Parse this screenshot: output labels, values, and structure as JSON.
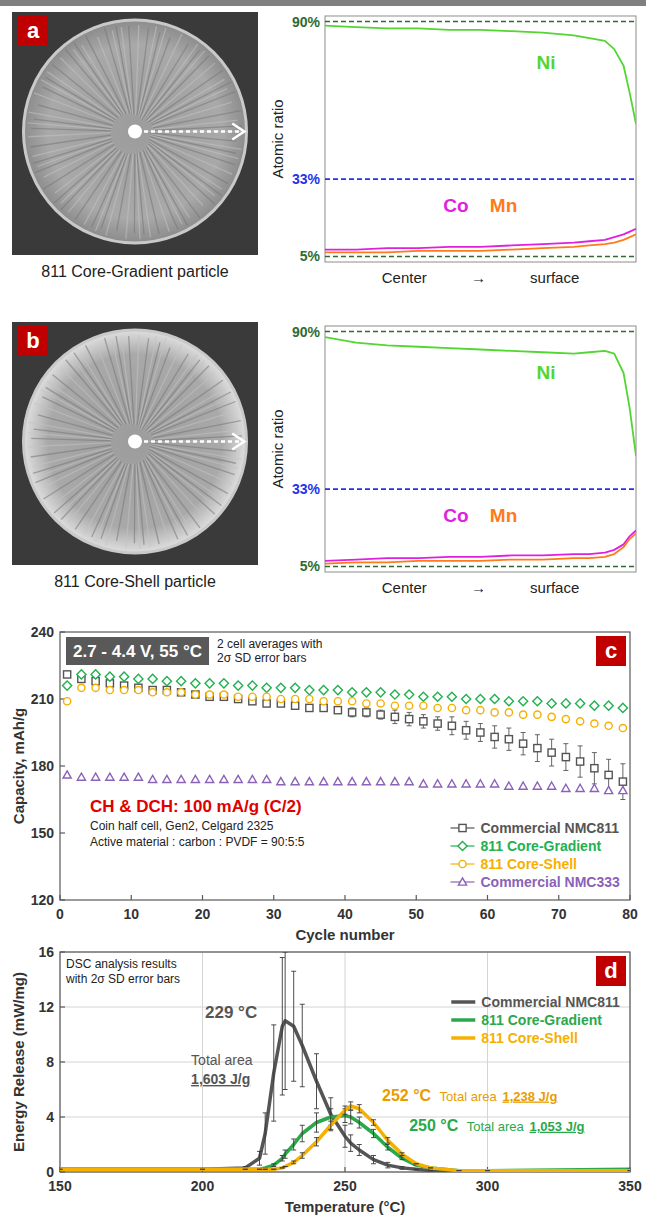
{
  "panel_labels": [
    "a",
    "b",
    "c",
    "d"
  ],
  "images": [
    {
      "caption": "811 Core-Gradient particle"
    },
    {
      "caption": "811 Core-Shell particle"
    }
  ],
  "chart_data": [
    {
      "type": "line",
      "xlabel": "Center → surface",
      "ylabel": "Atomic ratio",
      "x": [
        0,
        10,
        20,
        30,
        40,
        50,
        60,
        70,
        80,
        85,
        90,
        93,
        96,
        98,
        100
      ],
      "xlim": [
        0,
        100
      ],
      "ylim": [
        3,
        92
      ],
      "yticks": [
        {
          "value": 90,
          "label": "90%"
        },
        {
          "value": 33,
          "label": "33%"
        },
        {
          "value": 5,
          "label": "5%"
        }
      ],
      "grid": true,
      "tick_labels": "y",
      "series": [
        {
          "name": "Ni",
          "color": "#52d632",
          "values": [
            88.5,
            88,
            87.5,
            87.5,
            87,
            87,
            86.5,
            86,
            85,
            84,
            83,
            80,
            74,
            64,
            53
          ]
        },
        {
          "name": "Co",
          "color": "#e020e0",
          "values": [
            7.5,
            7.5,
            8,
            8,
            8.5,
            8.5,
            9,
            9.5,
            10,
            10.5,
            11,
            12,
            13,
            14,
            15
          ]
        },
        {
          "name": "Mn",
          "color": "#ff7a1a",
          "values": [
            6.5,
            6.5,
            6.5,
            7,
            7,
            7,
            7.5,
            8,
            8.5,
            9,
            9.5,
            10,
            11,
            12,
            13
          ]
        }
      ]
    },
    {
      "type": "line",
      "xlabel": "Center → surface",
      "ylabel": "Atomic ratio",
      "x": [
        0,
        10,
        20,
        30,
        40,
        50,
        60,
        70,
        80,
        85,
        90,
        93,
        96,
        98,
        100
      ],
      "xlim": [
        0,
        100
      ],
      "ylim": [
        3,
        92
      ],
      "yticks": [
        {
          "value": 90,
          "label": "90%"
        },
        {
          "value": 33,
          "label": "33%"
        },
        {
          "value": 5,
          "label": "5%"
        }
      ],
      "grid": true,
      "tick_labels": "y",
      "series": [
        {
          "name": "Ni",
          "color": "#52d632",
          "values": [
            88,
            86,
            85,
            84.5,
            84,
            83.5,
            83,
            82.5,
            82,
            82.5,
            83,
            82,
            75,
            62,
            45
          ]
        },
        {
          "name": "Co",
          "color": "#e020e0",
          "values": [
            7,
            7.5,
            8,
            8,
            8.5,
            8.5,
            9,
            9,
            9.5,
            9.5,
            10,
            11,
            13,
            16,
            18
          ]
        },
        {
          "name": "Mn",
          "color": "#ff7a1a",
          "values": [
            6,
            6.5,
            6.5,
            7,
            7,
            7,
            7.5,
            7.5,
            8,
            8,
            8.5,
            9.5,
            12,
            15,
            17
          ]
        }
      ]
    },
    {
      "type": "line",
      "xlabel": "Cycle number",
      "ylabel": "Capacity, mAh/g",
      "x": [
        1,
        3,
        5,
        7,
        9,
        11,
        13,
        15,
        17,
        19,
        21,
        23,
        25,
        27,
        29,
        31,
        33,
        35,
        37,
        39,
        41,
        43,
        45,
        47,
        49,
        51,
        53,
        55,
        57,
        59,
        61,
        63,
        65,
        67,
        69,
        71,
        73,
        75,
        77,
        79
      ],
      "xlim": [
        0,
        80
      ],
      "xticks": [
        0,
        10,
        20,
        30,
        40,
        50,
        60,
        70,
        80
      ],
      "ylim": [
        120,
        240
      ],
      "yticks": [
        120,
        150,
        180,
        210,
        240
      ],
      "grid": false,
      "legend": "lower right",
      "annotations": [
        "2.7 - 4.4 V, 55 °C",
        "2 cell averages with",
        "2σ SD error bars",
        "CH & DCH: 100 mA/g (C/2)",
        "Coin half cell, Gen2, Celgard 2325",
        "Active material : carbon : PVDF = 90:5:5"
      ],
      "series": [
        {
          "name": "Commercial NMC811",
          "color": "#555555",
          "marker": "square",
          "line_style": "none",
          "values": [
            221,
            219,
            218,
            217,
            216,
            215,
            214,
            214,
            213,
            212,
            211,
            211,
            210,
            209,
            208,
            208,
            207,
            206,
            206,
            205,
            204,
            204,
            203,
            202,
            201,
            200,
            199,
            198,
            196,
            195,
            193,
            192,
            190,
            188,
            186,
            184,
            182,
            179,
            176,
            173
          ],
          "errors": [
            1,
            1,
            1,
            1,
            1,
            1,
            1,
            1,
            1,
            1,
            1,
            1,
            1,
            1,
            1,
            1,
            1,
            1,
            1,
            1,
            2,
            2,
            2,
            3,
            3,
            3,
            3,
            4,
            4,
            4,
            5,
            5,
            5,
            6,
            6,
            6,
            7,
            7,
            7,
            8
          ]
        },
        {
          "name": "811 Core-Gradient",
          "color": "#22b050",
          "marker": "diamond",
          "line_style": "none",
          "values": [
            216,
            221,
            221,
            220,
            220,
            219,
            219,
            218,
            218,
            217,
            217,
            217,
            216,
            216,
            215,
            215,
            215,
            214,
            214,
            214,
            213,
            213,
            213,
            212,
            212,
            211,
            211,
            211,
            210,
            210,
            210,
            209,
            209,
            209,
            208,
            208,
            208,
            207,
            207,
            206
          ]
        },
        {
          "name": "811 Core-Shell",
          "color": "#f5b000",
          "marker": "circle",
          "line_style": "none",
          "values": [
            209,
            215,
            215,
            214,
            214,
            214,
            213,
            213,
            213,
            212,
            212,
            212,
            211,
            211,
            211,
            210,
            210,
            210,
            209,
            209,
            209,
            208,
            208,
            207,
            207,
            207,
            206,
            206,
            205,
            205,
            204,
            204,
            203,
            203,
            202,
            201,
            200,
            199,
            198,
            197
          ]
        },
        {
          "name": "Commercial NMC333",
          "color": "#8a62b8",
          "marker": "triangle",
          "line_style": "none",
          "values": [
            176,
            175,
            175,
            175,
            175,
            175,
            174,
            174,
            174,
            174,
            174,
            174,
            174,
            174,
            174,
            173,
            173,
            173,
            173,
            173,
            173,
            173,
            173,
            173,
            173,
            172,
            172,
            172,
            172,
            172,
            172,
            171,
            171,
            171,
            171,
            170,
            170,
            170,
            169,
            169
          ]
        }
      ]
    },
    {
      "type": "line",
      "xlabel": "Temperature (°C)",
      "ylabel": "Energy Release (mW/mg)",
      "x": [
        150,
        200,
        215,
        220,
        222,
        225,
        228,
        229,
        232,
        235,
        240,
        245,
        250,
        252,
        255,
        260,
        265,
        270,
        275,
        280,
        290,
        300,
        350
      ],
      "xlim": [
        150,
        350
      ],
      "xticks": [
        150,
        200,
        250,
        300,
        350
      ],
      "ylim": [
        0,
        16
      ],
      "yticks": [
        0,
        4,
        8,
        12,
        16
      ],
      "grid": true,
      "legend": "upper right",
      "annotations": [
        "DSC analysis results",
        "with 2σ SD error bars",
        "229 °C",
        "Total area",
        "1,603 J/g",
        "252 °C",
        "Total area",
        "1,238 J/g",
        "250 °C",
        "Total area",
        "1,053 J/g"
      ],
      "series": [
        {
          "name": "Commercial NMC811",
          "color": "#555555",
          "line_style": "solid",
          "values": [
            0.2,
            0.2,
            0.3,
            1.0,
            2.8,
            7.2,
            10.6,
            11.0,
            10.6,
            9.2,
            6.6,
            4.2,
            2.6,
            2.1,
            1.6,
            0.9,
            0.5,
            0.3,
            0.2,
            0.1,
            0.1,
            0.1,
            0.1
          ],
          "errors": [
            0,
            0,
            0.1,
            0.5,
            1.5,
            3.5,
            5,
            5,
            4,
            3,
            2,
            1.2,
            0.8,
            0.6,
            0.4,
            0.3,
            0.2,
            0.1,
            0,
            0,
            0,
            0,
            0
          ]
        },
        {
          "name": "811 Core-Gradient",
          "color": "#2aa84a",
          "line_style": "solid",
          "values": [
            0.2,
            0.2,
            0.2,
            0.2,
            0.3,
            0.5,
            1.0,
            1.3,
            2.0,
            2.8,
            3.6,
            4.0,
            4.1,
            4.0,
            3.6,
            2.8,
            1.8,
            1.0,
            0.5,
            0.3,
            0.1,
            0.1,
            0.2
          ],
          "errors": [
            0,
            0,
            0,
            0,
            0,
            0.1,
            0.2,
            0.3,
            0.4,
            0.6,
            0.7,
            0.6,
            0.5,
            0.5,
            0.4,
            0.3,
            0.2,
            0.1,
            0,
            0,
            0,
            0,
            0
          ]
        },
        {
          "name": "811 Core-Shell",
          "color": "#f5b000",
          "line_style": "solid",
          "values": [
            0.2,
            0.2,
            0.2,
            0.2,
            0.2,
            0.2,
            0.3,
            0.4,
            0.7,
            1.2,
            2.2,
            3.4,
            4.5,
            4.8,
            4.6,
            3.6,
            2.3,
            1.3,
            0.6,
            0.3,
            0.1,
            0.1,
            0.1
          ],
          "errors": [
            0,
            0,
            0,
            0,
            0,
            0,
            0,
            0,
            0.1,
            0.2,
            0.3,
            0.3,
            0.3,
            0.3,
            0.3,
            0.2,
            0.2,
            0.1,
            0,
            0,
            0,
            0,
            0
          ]
        }
      ]
    }
  ]
}
